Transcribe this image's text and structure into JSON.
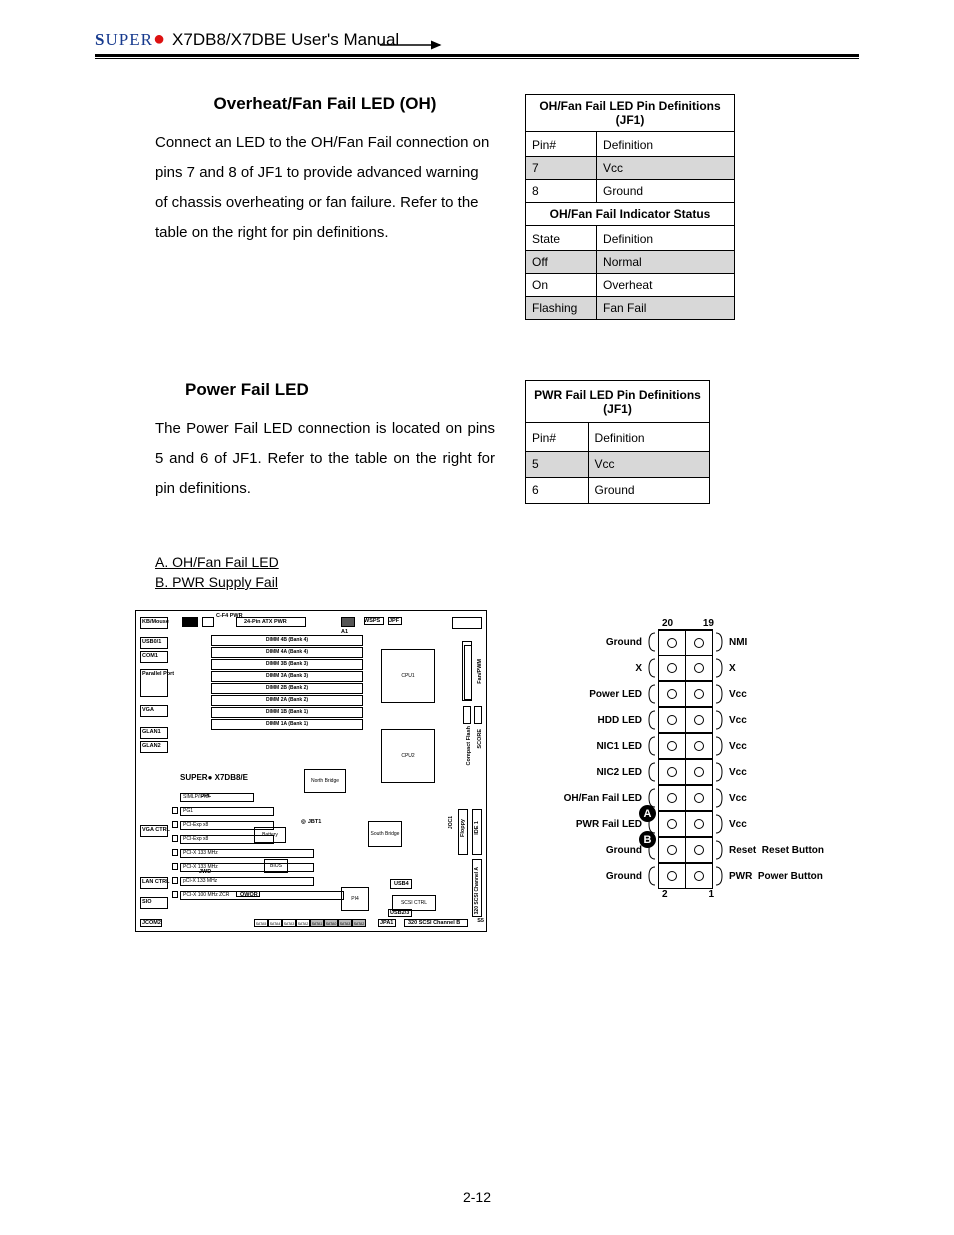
{
  "header": {
    "logo_prefix": "S",
    "logo_rest": "UPER",
    "manual_title": "X7DB8/X7DBE User's Manual"
  },
  "section1": {
    "title": "Overheat/Fan Fail LED (OH)",
    "body": "Connect an LED to the OH/Fan Fail connection on pins 7 and 8 of JF1 to provide advanced warning of chassis overheating or fan failure.  Refer to the table on the right for pin definitions."
  },
  "table1": {
    "title": "OH/Fan Fail LED Pin Definitions (JF1)",
    "col1": "Pin#",
    "col2": "Definition",
    "rows": [
      {
        "a": "7",
        "b": "Vcc",
        "shaded": true
      },
      {
        "a": "8",
        "b": "Ground",
        "shaded": false
      }
    ],
    "title2": "OH/Fan Fail Indicator Status",
    "col1b": "State",
    "col2b": "Definition",
    "rows2": [
      {
        "a": "Off",
        "b": "Normal",
        "shaded": true
      },
      {
        "a": "On",
        "b": "Overheat",
        "shaded": false
      },
      {
        "a": "Flashing",
        "b": "Fan Fail",
        "shaded": true
      }
    ]
  },
  "section2": {
    "title": "Power Fail LED",
    "body": "The Power Fail LED connection is located on pins 5 and 6 of JF1.  Refer to the table on the right for pin definitions."
  },
  "table2": {
    "title": "PWR Fail LED Pin Definitions (JF1)",
    "col1": "Pin#",
    "col2": "Definition",
    "rows": [
      {
        "a": "5",
        "b": "Vcc",
        "shaded": true
      },
      {
        "a": "6",
        "b": "Ground",
        "shaded": false
      }
    ]
  },
  "legend": {
    "a": "A. OH/Fan Fail LED",
    "b": "B. PWR Supply Fail"
  },
  "board": {
    "title": "SUPER   X7DB8/E",
    "dimms": [
      "DIMM 4B (Bank 4)",
      "DIMM 4A (Bank 4)",
      "DIMM 3B (Bank 3)",
      "DIMM 3A (Bank 3)",
      "DIMM 2B (Bank 2)",
      "DIMM 2A (Bank 2)",
      "DIMM 1B (Bank 1)",
      "DIMM 1A (Bank 1)"
    ],
    "cpu1": "CPU1",
    "cpu2": "CPU2",
    "nb": "North Bridge",
    "sb": "South Bridge",
    "batt": "Battery",
    "bios": "BIOS",
    "ph4": "PI4",
    "scsi": "SCSI CTRL",
    "atx": "24-Pin ATX PWR",
    "j17": "J17",
    "j18": "J18",
    "top_lbls": [
      "KB/Mouse",
      "USB0/1",
      "COM1",
      "Parallel Port",
      "VGA",
      "GLAN1",
      "GLAN2",
      "VGA CTRL",
      "LAN CTRL",
      "SIO",
      "JCOM2"
    ],
    "right_lbls": [
      "Fan/PWM",
      "SCORE",
      "Compact Flash",
      "Floppy",
      "IDE 1",
      "JOC1",
      "320 SCSI Channel A"
    ],
    "slots": [
      "SIMLP/IPMI",
      "PG1",
      "PCI-Exp x8",
      "PCI-Exp x8",
      "PCI-X 133 MHz",
      "PCI-X 133 MHz",
      "pCI-X 133 MHz",
      "PCI-X 100 MHz  ZCR"
    ],
    "small": [
      "JPA1",
      "S5",
      "OWOR",
      "JBT1",
      "WD",
      "JWD",
      "JPL"
    ],
    "sata": [
      "SATA5",
      "SATA4",
      "SATA3",
      "SATA2",
      "SATA1",
      "SATA0",
      "SATA3",
      "SATA2"
    ],
    "scsi_ch_b": "320 SCSI Channel B",
    "usb4": "USB4",
    "usb23": "USB2/3",
    "cfg": "C-F4 PWR",
    "jpf": "JPF",
    "wsps": "WSPS",
    "a1": "A1",
    "jpw": "JPW"
  },
  "jf1": {
    "top_left": "20",
    "top_right": "19",
    "rows": [
      {
        "l": "Ground",
        "r": "NMI"
      },
      {
        "l": "X",
        "r": "X"
      },
      {
        "l": "Power LED",
        "r": "Vcc"
      },
      {
        "l": "HDD LED",
        "r": "Vcc"
      },
      {
        "l": "NIC1 LED",
        "r": "Vcc"
      },
      {
        "l": "NIC2 LED",
        "r": "Vcc"
      },
      {
        "l": "OH/Fan Fail LED",
        "r": "Vcc",
        "badge": "A",
        "badge_side": "left"
      },
      {
        "l": "PWR Fail LED",
        "r": "Vcc",
        "badge": "B",
        "badge_side": "left"
      },
      {
        "l": "Ground",
        "r": "Reset",
        "ext": "Reset Button"
      },
      {
        "l": "Ground",
        "r": "PWR",
        "ext": "Power Button"
      }
    ],
    "bot_left": "2",
    "bot_right": "1"
  },
  "page_number": "2-12"
}
